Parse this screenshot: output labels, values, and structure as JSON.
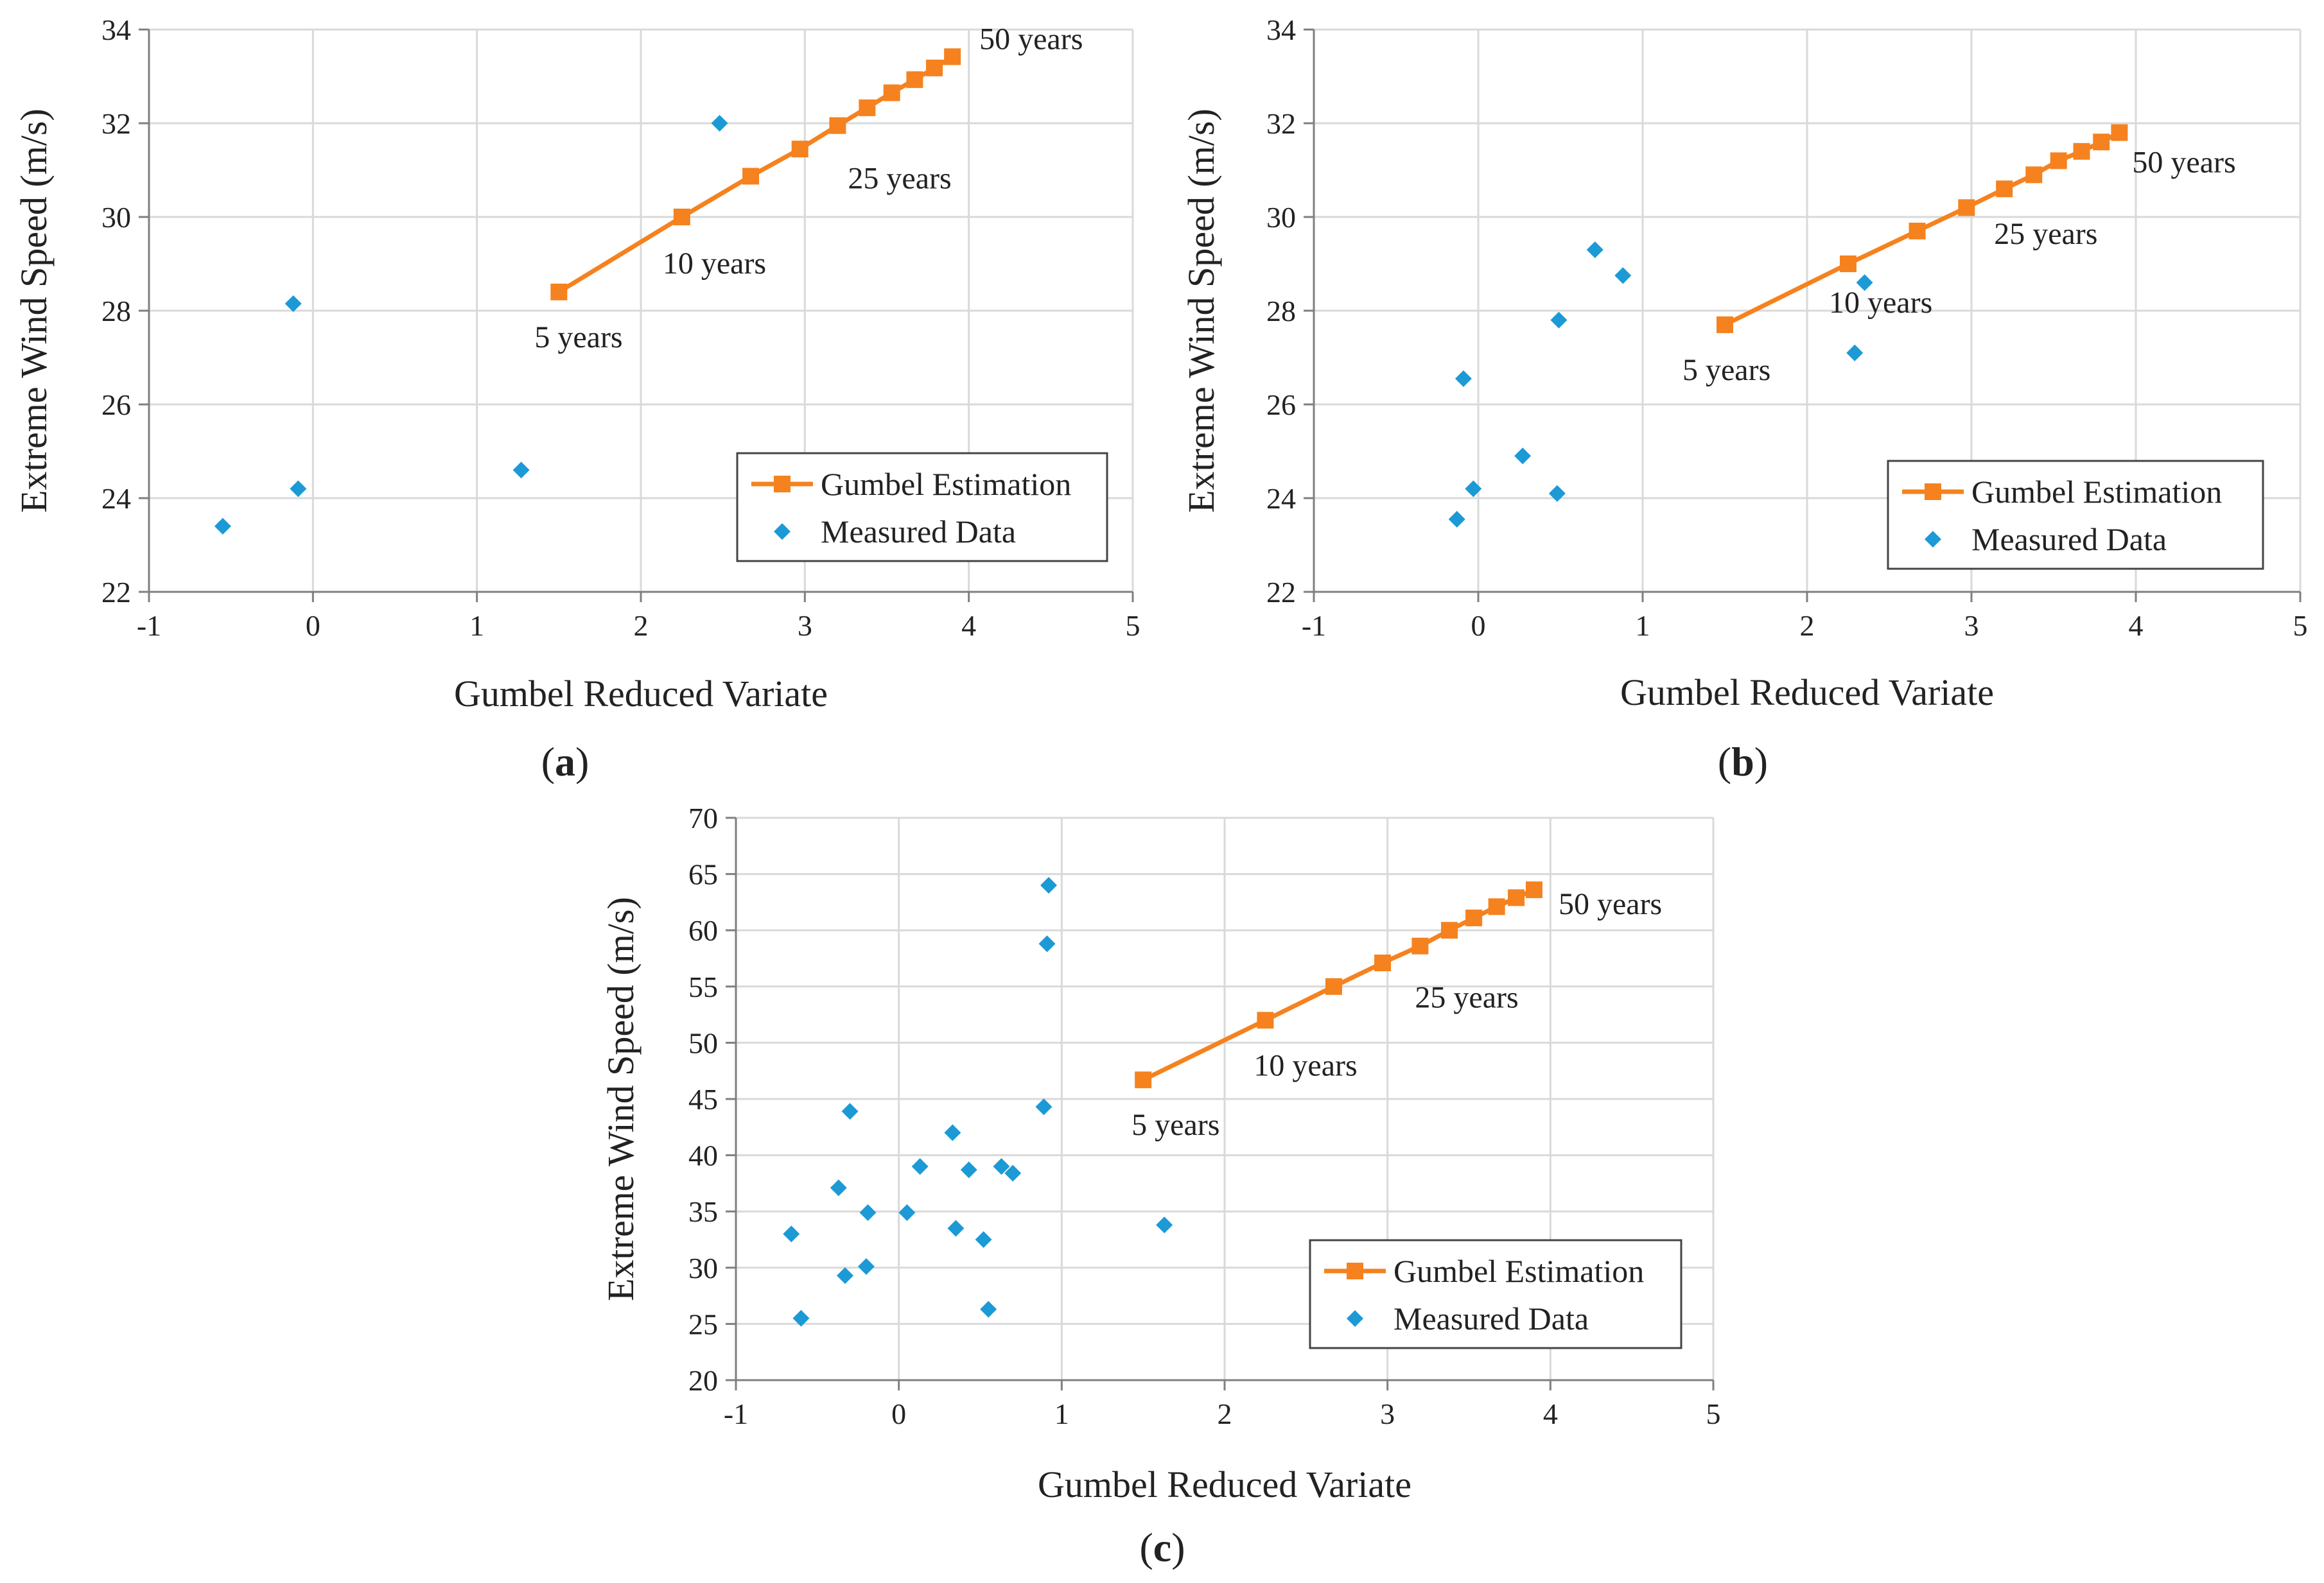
{
  "figure": {
    "panels": [
      "a",
      "b",
      "c"
    ]
  },
  "colors": {
    "gumbel": "#f5821f",
    "measured": "#1c9ad6",
    "grid": "#d9d9d9",
    "axis": "#7f7f7f"
  },
  "chart_data": [
    {
      "id": "a",
      "type": "scatter",
      "label": "a",
      "xlabel": "Gumbel Reduced Variate",
      "ylabel": "Extreme Wind Speed (m/s)",
      "xlim": [
        -1,
        5
      ],
      "ylim": [
        22,
        34
      ],
      "xticks": [
        -1,
        0,
        1,
        2,
        3,
        4,
        5
      ],
      "yticks": [
        22,
        24,
        26,
        28,
        30,
        32,
        34
      ],
      "grid": true,
      "legend": {
        "position": "bottom-right",
        "entries": [
          "Gumbel Estimation",
          "Measured Data"
        ]
      },
      "series": [
        {
          "name": "Gumbel Estimation",
          "type": "line",
          "x": [
            1.5,
            2.25,
            2.67,
            2.97,
            3.2,
            3.38,
            3.53,
            3.67,
            3.79,
            3.9
          ],
          "y": [
            28.4,
            30.0,
            30.87,
            31.45,
            31.95,
            32.33,
            32.65,
            32.93,
            33.18,
            33.42
          ]
        },
        {
          "name": "Measured Data",
          "type": "scatter",
          "x": [
            -0.55,
            -0.12,
            -0.09,
            1.27,
            2.48
          ],
          "y": [
            23.4,
            28.15,
            24.2,
            24.6,
            32.0
          ]
        }
      ],
      "annotations": [
        {
          "text": "5 years",
          "x": 1.5,
          "y": 28.4
        },
        {
          "text": "10 years",
          "x": 2.25,
          "y": 30.0
        },
        {
          "text": "25 years",
          "x": 3.2,
          "y": 31.95
        },
        {
          "text": "50 years",
          "x": 3.9,
          "y": 33.42
        }
      ]
    },
    {
      "id": "b",
      "type": "scatter",
      "label": "b",
      "xlabel": "Gumbel Reduced Variate",
      "ylabel": "Extreme Wind Speed (m/s)",
      "xlim": [
        -1,
        5
      ],
      "ylim": [
        22,
        34
      ],
      "xticks": [
        -1,
        0,
        1,
        2,
        3,
        4,
        5
      ],
      "yticks": [
        22,
        24,
        26,
        28,
        30,
        32,
        34
      ],
      "grid": true,
      "legend": {
        "position": "bottom-right",
        "entries": [
          "Gumbel Estimation",
          "Measured Data"
        ]
      },
      "series": [
        {
          "name": "Gumbel Estimation",
          "type": "line",
          "x": [
            1.5,
            2.25,
            2.67,
            2.97,
            3.2,
            3.38,
            3.53,
            3.67,
            3.79,
            3.9
          ],
          "y": [
            27.7,
            29.0,
            29.7,
            30.2,
            30.6,
            30.9,
            31.2,
            31.4,
            31.6,
            31.8
          ]
        },
        {
          "name": "Measured Data",
          "type": "scatter",
          "x": [
            -0.13,
            -0.09,
            -0.03,
            0.27,
            0.48,
            0.49,
            0.71,
            0.88,
            2.29,
            2.35
          ],
          "y": [
            23.55,
            26.55,
            24.2,
            24.9,
            24.1,
            27.8,
            29.3,
            28.75,
            27.1,
            28.6
          ]
        }
      ],
      "annotations": [
        {
          "text": "5 years",
          "x": 1.5,
          "y": 27.7
        },
        {
          "text": "10 years",
          "x": 2.25,
          "y": 29.0
        },
        {
          "text": "25 years",
          "x": 3.2,
          "y": 30.6
        },
        {
          "text": "50 years",
          "x": 3.9,
          "y": 31.8
        }
      ]
    },
    {
      "id": "c",
      "type": "scatter",
      "label": "c",
      "xlabel": "Gumbel Reduced Variate",
      "ylabel": "Extreme Wind Speed (m/s)",
      "xlim": [
        -1,
        5
      ],
      "ylim": [
        20,
        70
      ],
      "xticks": [
        -1,
        0,
        1,
        2,
        3,
        4,
        5
      ],
      "yticks": [
        20,
        25,
        30,
        35,
        40,
        45,
        50,
        55,
        60,
        65,
        70
      ],
      "grid": true,
      "legend": {
        "position": "bottom-right",
        "entries": [
          "Gumbel Estimation",
          "Measured Data"
        ]
      },
      "series": [
        {
          "name": "Gumbel Estimation",
          "type": "line",
          "x": [
            1.5,
            2.25,
            2.67,
            2.97,
            3.2,
            3.38,
            3.53,
            3.67,
            3.79,
            3.9
          ],
          "y": [
            46.7,
            52.0,
            55.0,
            57.1,
            58.6,
            60.0,
            61.1,
            62.1,
            62.9,
            63.6
          ]
        },
        {
          "name": "Measured Data",
          "type": "scatter",
          "x": [
            -0.66,
            -0.6,
            -0.37,
            -0.33,
            -0.3,
            -0.2,
            -0.19,
            0.05,
            0.13,
            0.33,
            0.35,
            0.43,
            0.52,
            0.55,
            0.63,
            0.7,
            0.89,
            0.91,
            0.92,
            1.63
          ],
          "y": [
            33.0,
            25.5,
            37.1,
            29.3,
            43.9,
            30.1,
            34.9,
            34.9,
            39.0,
            42.0,
            33.5,
            38.7,
            32.5,
            26.3,
            39.0,
            38.4,
            44.3,
            58.8,
            64.0,
            33.8
          ]
        }
      ],
      "annotations": [
        {
          "text": "5 years",
          "x": 1.5,
          "y": 46.7
        },
        {
          "text": "10 years",
          "x": 2.25,
          "y": 52.0
        },
        {
          "text": "25 years",
          "x": 3.2,
          "y": 58.6
        },
        {
          "text": "50 years",
          "x": 3.9,
          "y": 63.6
        }
      ]
    }
  ]
}
